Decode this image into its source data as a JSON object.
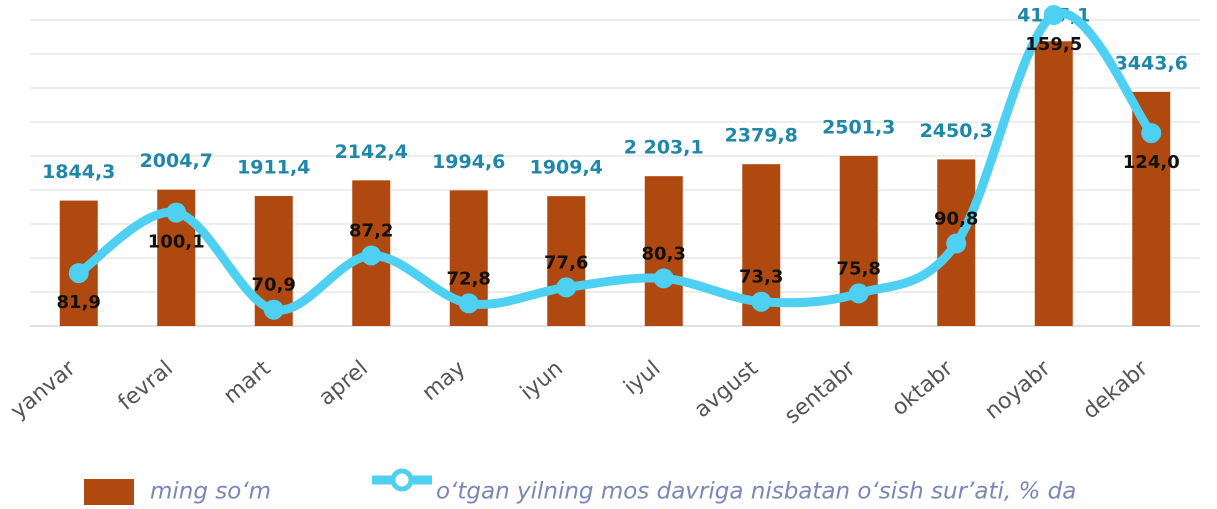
{
  "chart_data": {
    "type": "bar_line",
    "categories": [
      "yanvar",
      "fevral",
      "mart",
      "aprel",
      "may",
      "iyun",
      "iyul",
      "avgust",
      "sentabr",
      "oktabr",
      "noyabr",
      "dekabr"
    ],
    "series": [
      {
        "name": "ming so‘m",
        "type": "bar",
        "color": "#b0490f",
        "values": [
          1844.3,
          2004.7,
          1911.4,
          2142.4,
          1994.6,
          1909.4,
          2203.1,
          2379.8,
          2501.3,
          2450.3,
          4187.1,
          3443.6
        ],
        "value_labels": [
          "1844,3",
          "2004,7",
          "1911,4",
          "2142,4",
          "1994,6",
          "1909,4",
          "2 203,1",
          "2379,8",
          "2501,3",
          "2450,3",
          "4187,1",
          "3443,6"
        ]
      },
      {
        "name": "o‘tgan yilning mos davriga nisbatan o‘sish sur’ati, % da",
        "type": "line",
        "axis": "y2",
        "color": "#4dd0f2",
        "values": [
          81.9,
          100.1,
          70.9,
          87.2,
          72.8,
          77.6,
          80.3,
          73.3,
          75.8,
          90.8,
          159.5,
          124.0
        ],
        "value_labels": [
          "81,9",
          "100,1",
          "70,9",
          "87,2",
          "72,8",
          "77,6",
          "80,3",
          "73,3",
          "75,8",
          "90,8",
          "159,5",
          "124,0"
        ]
      }
    ],
    "ylim": [
      0,
      4500
    ],
    "yticks": [
      0,
      500,
      1000,
      1500,
      2000,
      2500,
      3000,
      3500,
      4000,
      4500
    ],
    "y2lim": [
      66,
      158
    ],
    "grid": true
  }
}
